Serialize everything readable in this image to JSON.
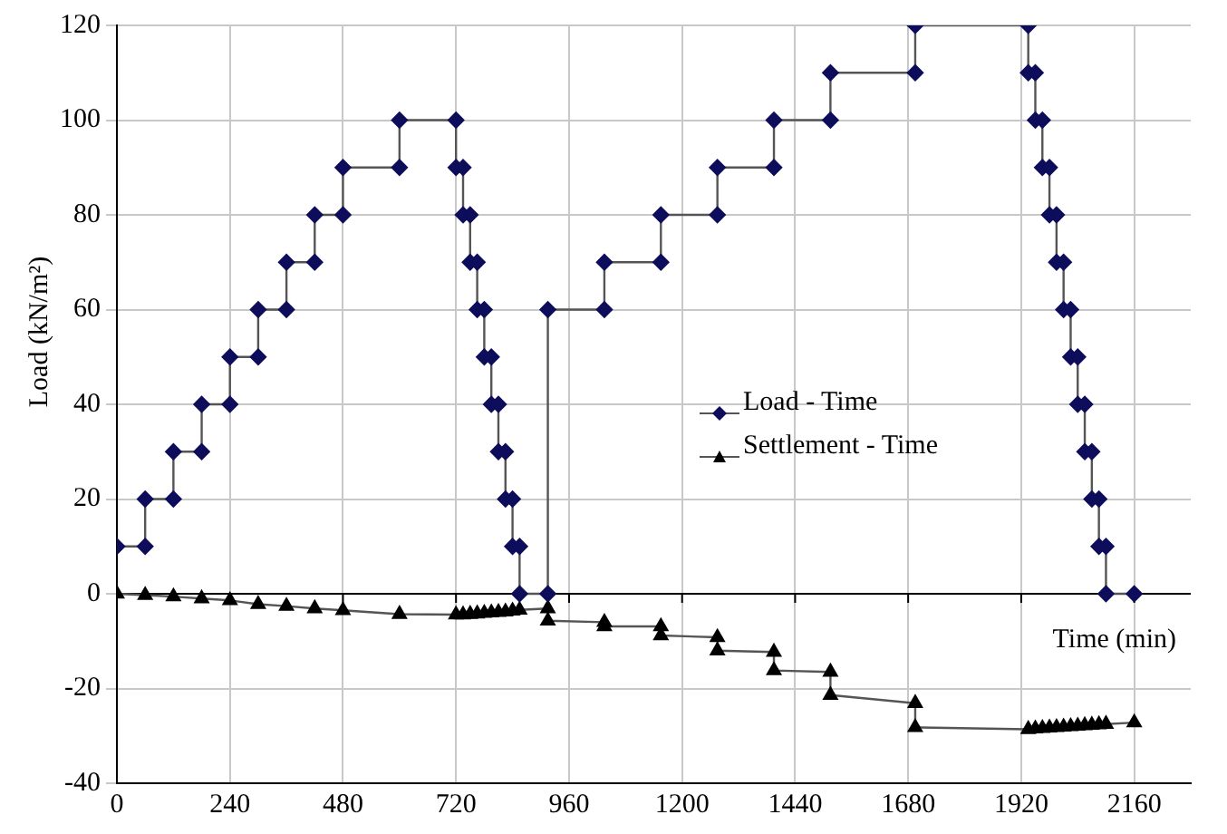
{
  "chart_data": {
    "type": "line",
    "xlabel": "Time (min)",
    "ylabel": "Load (kN/m²)",
    "xlim": [
      0,
      2280
    ],
    "xticks": [
      0,
      240,
      480,
      720,
      960,
      1200,
      1440,
      1680,
      1920,
      2160
    ],
    "ylim": [
      -40,
      120
    ],
    "yticks": [
      -40,
      -20,
      0,
      20,
      40,
      60,
      80,
      100,
      120
    ],
    "grid": true,
    "legend": "right",
    "line_style": "solid",
    "series": [
      {
        "name": "Load - Time",
        "color": "#0d0d5c",
        "marker": "diamond",
        "x": [
          0,
          60,
          60,
          120,
          120,
          180,
          180,
          240,
          240,
          300,
          300,
          360,
          360,
          420,
          420,
          480,
          480,
          600,
          600,
          720,
          720,
          735,
          735,
          750,
          750,
          765,
          765,
          780,
          780,
          795,
          795,
          810,
          810,
          825,
          825,
          840,
          840,
          855,
          855,
          915,
          915,
          1035,
          1035,
          1155,
          1155,
          1275,
          1275,
          1395,
          1395,
          1515,
          1515,
          1695,
          1695,
          1935,
          1935,
          1950,
          1950,
          1965,
          1965,
          1980,
          1980,
          1995,
          1995,
          2010,
          2010,
          2025,
          2025,
          2040,
          2040,
          2055,
          2055,
          2070,
          2070,
          2085,
          2085,
          2100,
          2100,
          2160
        ],
        "values": [
          10,
          10,
          20,
          20,
          30,
          30,
          40,
          40,
          50,
          50,
          60,
          60,
          70,
          70,
          80,
          80,
          90,
          90,
          100,
          100,
          90,
          90,
          80,
          80,
          70,
          70,
          60,
          60,
          50,
          50,
          40,
          40,
          30,
          30,
          20,
          20,
          10,
          10,
          0,
          0,
          60,
          60,
          70,
          70,
          80,
          80,
          90,
          90,
          100,
          100,
          110,
          110,
          120,
          120,
          110,
          110,
          100,
          100,
          90,
          90,
          80,
          80,
          70,
          70,
          60,
          60,
          50,
          50,
          40,
          40,
          30,
          30,
          20,
          20,
          10,
          10,
          0,
          0
        ]
      },
      {
        "name": "Settlement - Time",
        "color": "#000000",
        "marker": "triangle",
        "x": [
          0,
          60,
          120,
          180,
          240,
          300,
          360,
          420,
          480,
          600,
          720,
          735,
          750,
          765,
          780,
          795,
          810,
          825,
          840,
          855,
          915,
          915,
          1035,
          1035,
          1155,
          1155,
          1275,
          1275,
          1395,
          1395,
          1515,
          1515,
          1695,
          1695,
          1935,
          1950,
          1965,
          1980,
          1995,
          2010,
          2025,
          2040,
          2055,
          2070,
          2085,
          2100,
          2160
        ],
        "values": [
          0,
          -0.3,
          -0.6,
          -1.0,
          -1.4,
          -2.2,
          -2.6,
          -3.1,
          -3.5,
          -4.3,
          -4.4,
          -4.4,
          -4.3,
          -4.2,
          -4.1,
          -4.0,
          -3.9,
          -3.8,
          -3.6,
          -3.4,
          -3.1,
          -5.7,
          -6.0,
          -6.9,
          -6.9,
          -8.8,
          -9.2,
          -12.0,
          -12.3,
          -16.2,
          -16.5,
          -21.4,
          -23.1,
          -28.2,
          -28.6,
          -28.5,
          -28.4,
          -28.3,
          -28.2,
          -28.1,
          -28.0,
          -27.9,
          -27.8,
          -27.7,
          -27.6,
          -27.5,
          -27.2
        ]
      }
    ]
  }
}
